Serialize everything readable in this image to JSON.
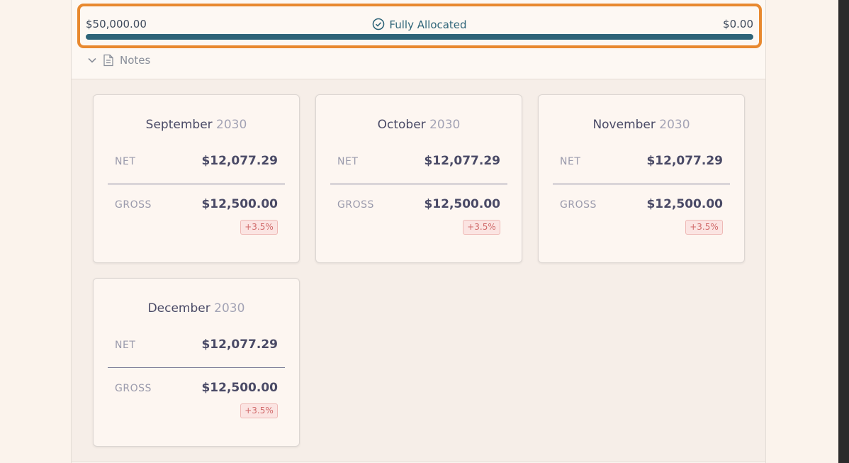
{
  "allocation": {
    "total": "$50,000.00",
    "status": "Fully Allocated",
    "remaining": "$0.00"
  },
  "notes": {
    "label": "Notes"
  },
  "cards": [
    {
      "month": "September",
      "year": "2030",
      "net_label": "NET",
      "net": "$12,077.29",
      "gross_label": "GROSS",
      "gross": "$12,500.00",
      "change": "+3.5%"
    },
    {
      "month": "October",
      "year": "2030",
      "net_label": "NET",
      "net": "$12,077.29",
      "gross_label": "GROSS",
      "gross": "$12,500.00",
      "change": "+3.5%"
    },
    {
      "month": "November",
      "year": "2030",
      "net_label": "NET",
      "net": "$12,077.29",
      "gross_label": "GROSS",
      "gross": "$12,500.00",
      "change": "+3.5%"
    },
    {
      "month": "December",
      "year": "2030",
      "net_label": "NET",
      "net": "$12,077.29",
      "gross_label": "GROSS",
      "gross": "$12,500.00",
      "change": "+3.5%"
    }
  ]
}
